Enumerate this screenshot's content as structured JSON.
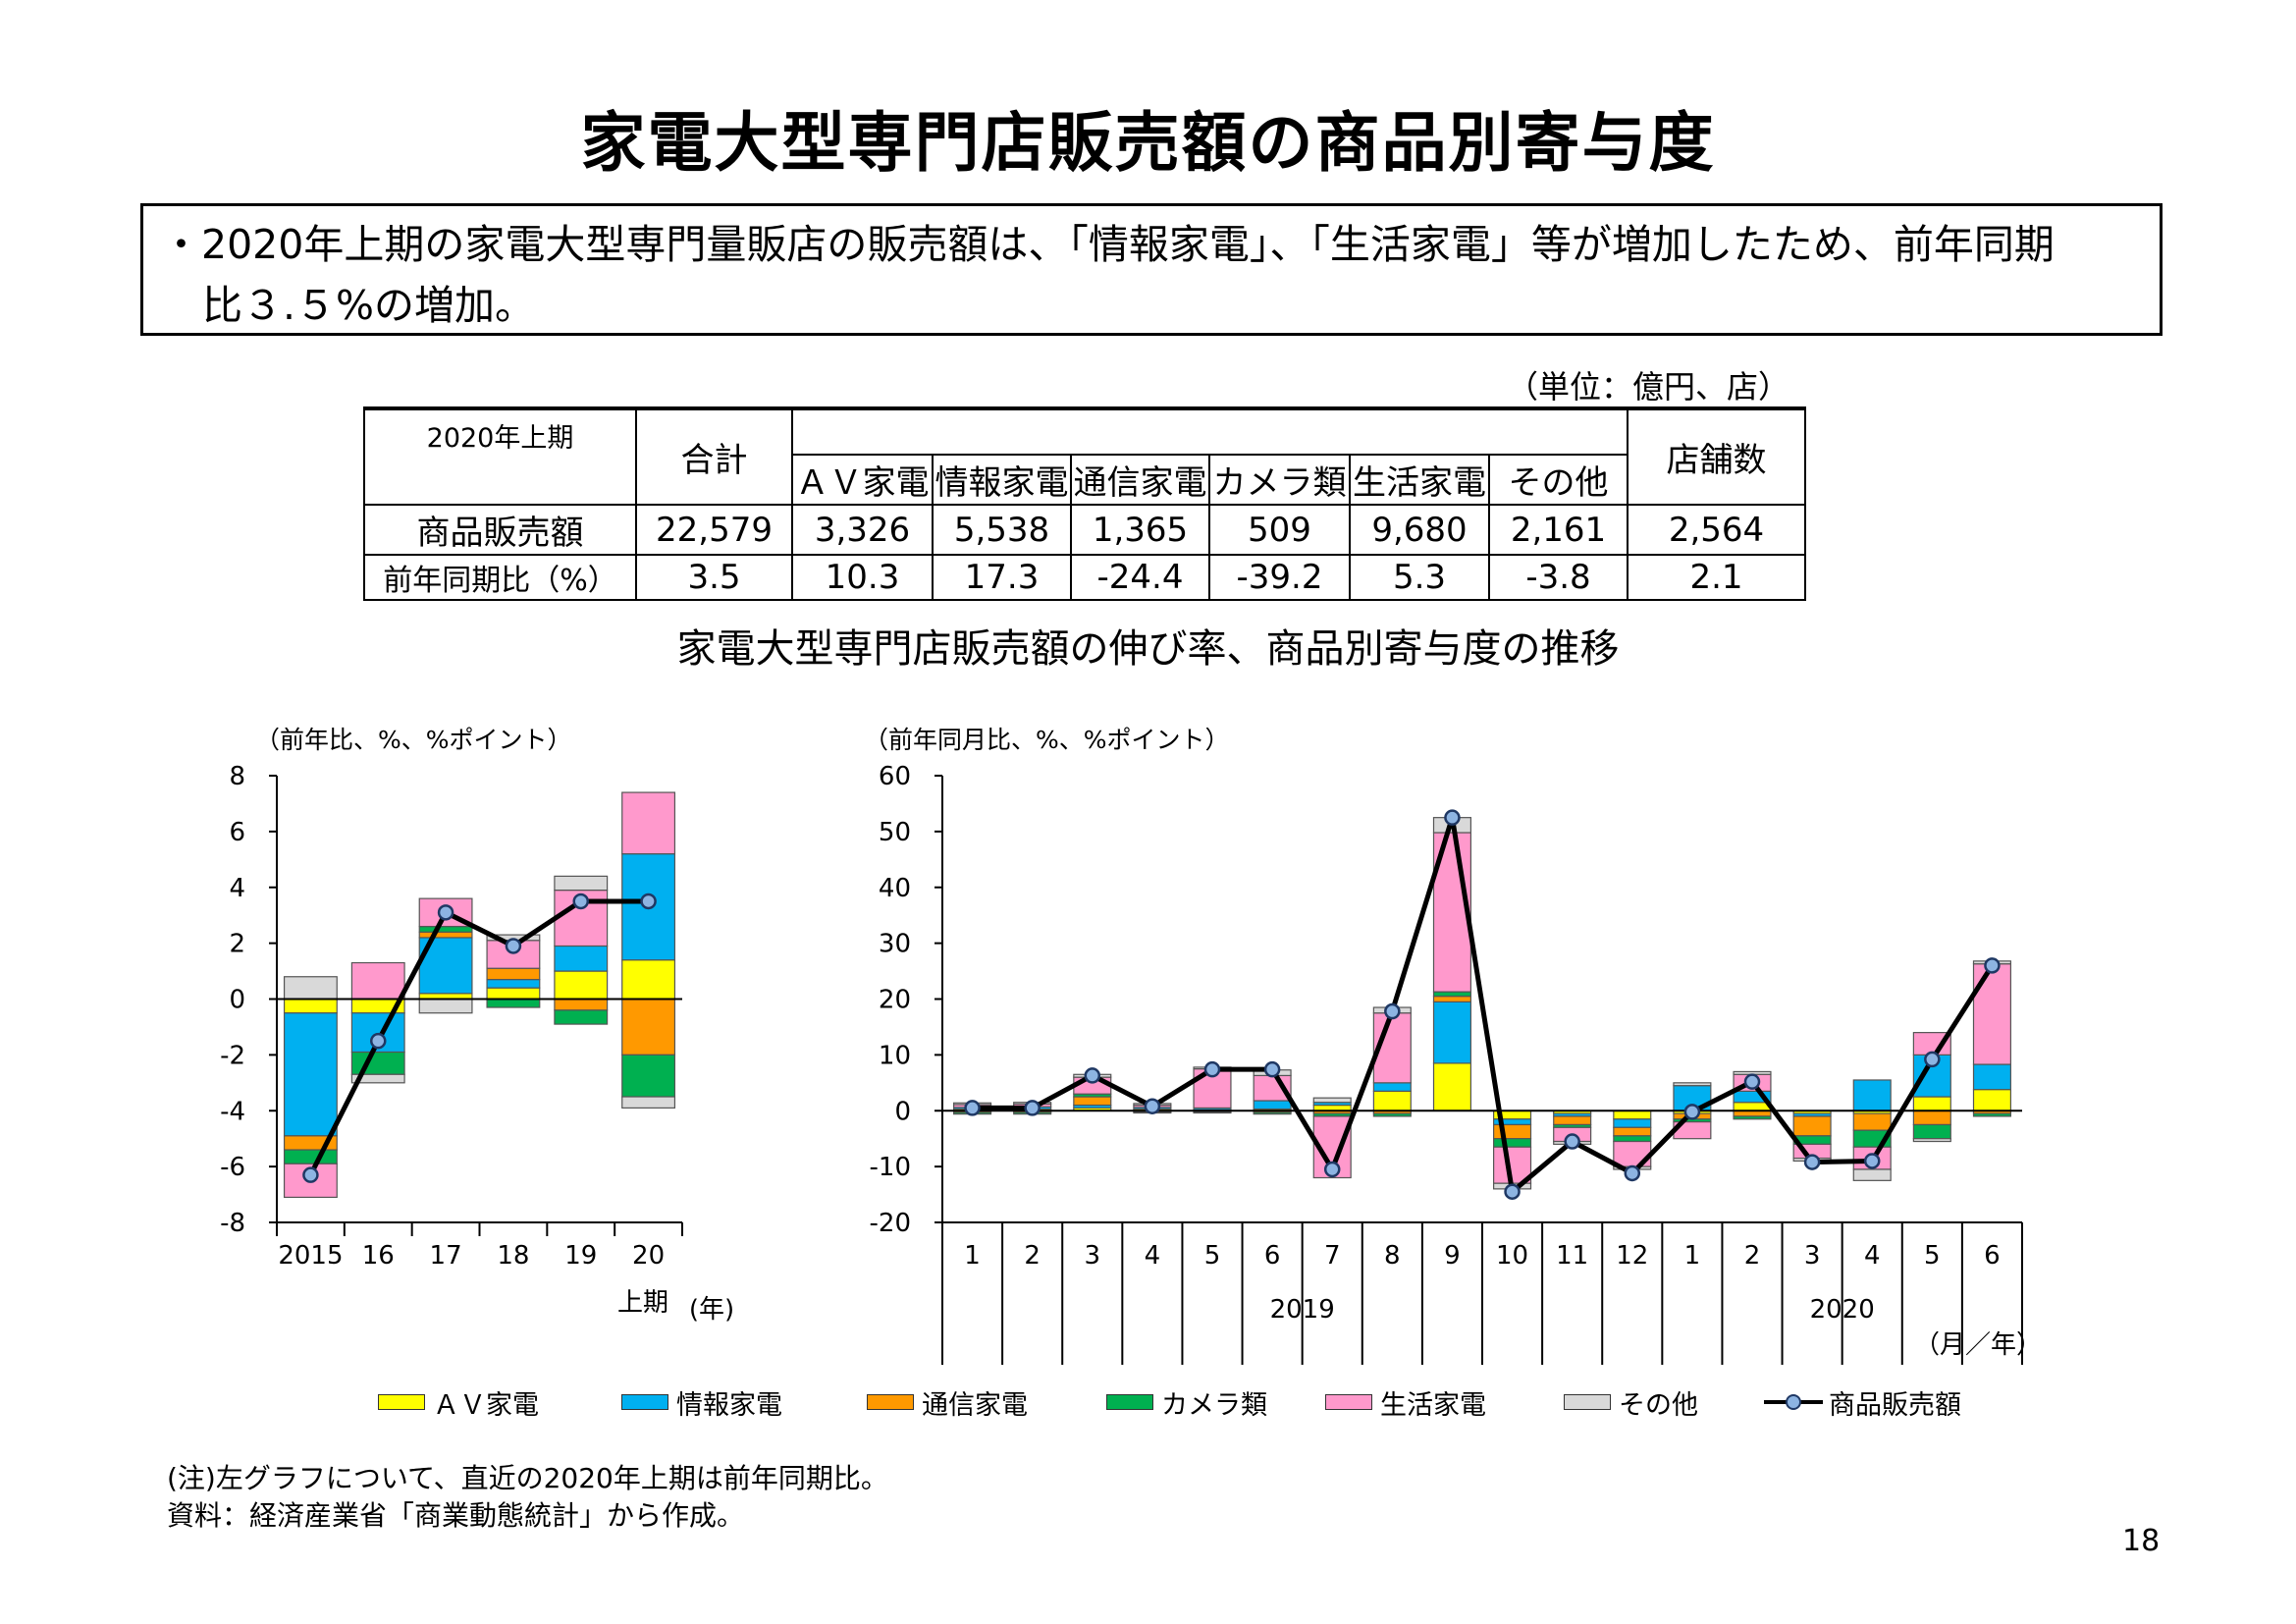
{
  "title": "家電大型専門店販売額の商品別寄与度",
  "summary": {
    "line1": "・2020年上期の家電大型専門量販店の販売額は、「情報家電」、「生活家電」等が増加したため、前年同期",
    "line2": "比３.５%の増加。"
  },
  "unit_label": "（単位：億円、店）",
  "table": {
    "period_label": "2020年上期",
    "total_header": "合計",
    "category_headers": [
      "ＡＶ家電",
      "情報家電",
      "通信家電",
      "カメラ類",
      "生活家電",
      "その他"
    ],
    "stores_header": "店舗数",
    "rows": [
      {
        "label": "商品販売額",
        "total": "22,579",
        "values": [
          "3,326",
          "5,538",
          "1,365",
          "509",
          "9,680",
          "2,161"
        ],
        "stores": "2,564"
      },
      {
        "label": "前年同期比（%）",
        "total": "3.5",
        "values": [
          "10.3",
          "17.3",
          "-24.4",
          "-39.2",
          "5.3",
          "-3.8"
        ],
        "stores": "2.1"
      }
    ]
  },
  "chart_subtitle": "家電大型専門店販売額の伸び率、商品別寄与度の推移",
  "colors": {
    "av": "#ffff00",
    "info": "#00b0f0",
    "telecom": "#ff9900",
    "camera": "#00b050",
    "living": "#ff99cc",
    "other": "#d9d9d9",
    "line": "#000000",
    "marker": "#8db4e2"
  },
  "legend": [
    "ＡＶ家電",
    "情報家電",
    "通信家電",
    "カメラ類",
    "生活家電",
    "その他",
    "商品販売額"
  ],
  "chart_data": [
    {
      "type": "bar",
      "stacked": true,
      "ylabel": "（前年比、%、%ポイント）",
      "ylim": [
        -8,
        8
      ],
      "yticks": [
        "8",
        "6",
        "4",
        "2",
        "0",
        "-2",
        "-4",
        "-6",
        "-8"
      ],
      "categories": [
        "2015",
        "16",
        "17",
        "18",
        "19",
        "20"
      ],
      "x_sublabel": "上期",
      "x_unit": "(年)",
      "series": [
        {
          "name": "ＡＶ家電",
          "values": [
            -0.5,
            -0.5,
            0.2,
            0.4,
            1.0,
            1.4
          ]
        },
        {
          "name": "情報家電",
          "values": [
            -4.4,
            -1.4,
            2.0,
            0.3,
            0.9,
            3.8
          ]
        },
        {
          "name": "通信家電",
          "values": [
            -0.5,
            0.0,
            0.2,
            0.4,
            -0.4,
            -2.0
          ]
        },
        {
          "name": "カメラ類",
          "values": [
            -0.5,
            -0.8,
            0.2,
            -0.3,
            -0.5,
            -1.5
          ]
        },
        {
          "name": "生活家電",
          "values": [
            -1.2,
            1.3,
            1.0,
            1.0,
            2.0,
            2.2
          ]
        },
        {
          "name": "その他",
          "values": [
            0.8,
            -0.3,
            -0.5,
            0.2,
            0.5,
            -0.4
          ]
        },
        {
          "name": "商品販売額",
          "type": "line",
          "values": [
            -6.3,
            -1.5,
            3.1,
            1.9,
            3.5,
            3.5
          ]
        }
      ]
    },
    {
      "type": "bar",
      "stacked": true,
      "ylabel": "（前年同月比、%、%ポイント）",
      "ylim": [
        -20,
        60
      ],
      "yticks": [
        "60",
        "50",
        "40",
        "30",
        "20",
        "10",
        "0",
        "-10",
        "-20"
      ],
      "categories": [
        "1",
        "2",
        "3",
        "4",
        "5",
        "6",
        "7",
        "8",
        "9",
        "10",
        "11",
        "12",
        "1",
        "2",
        "3",
        "4",
        "5",
        "6"
      ],
      "year_groups": [
        {
          "label": "2019",
          "count": 12
        },
        {
          "label": "2020",
          "count": 6
        }
      ],
      "x_unit": "（月／年）",
      "series": [
        {
          "name": "ＡＶ家電",
          "values": [
            0.3,
            0.3,
            0.5,
            0.3,
            0.2,
            0.3,
            1.0,
            3.5,
            8.5,
            -1.5,
            -0.5,
            -1.5,
            -0.5,
            1.5,
            -0.5,
            -0.5,
            2.5,
            3.8
          ]
        },
        {
          "name": "情報家電",
          "values": [
            0.3,
            0.4,
            0.5,
            0.3,
            0.3,
            1.5,
            0.5,
            1.5,
            11.0,
            -1.0,
            -0.5,
            -1.5,
            4.5,
            2.0,
            -0.5,
            5.5,
            7.5,
            4.5
          ]
        },
        {
          "name": "通信家電",
          "values": [
            -0.3,
            -0.3,
            1.5,
            -0.2,
            -0.2,
            -0.3,
            -0.5,
            -0.5,
            1.0,
            -2.5,
            -1.5,
            -1.5,
            -1.0,
            -1.0,
            -3.5,
            -3.0,
            -2.5,
            -0.5
          ]
        },
        {
          "name": "カメラ類",
          "values": [
            -0.3,
            -0.3,
            0.5,
            -0.2,
            -0.2,
            -0.3,
            -0.5,
            -0.5,
            0.8,
            -1.5,
            -0.5,
            -1.0,
            -0.5,
            -0.5,
            -1.5,
            -3.0,
            -2.5,
            -0.5
          ]
        },
        {
          "name": "生活家電",
          "values": [
            0.5,
            0.5,
            3.0,
            0.4,
            7.0,
            4.5,
            -11.0,
            12.5,
            28.5,
            -6.5,
            -2.5,
            -4.5,
            -3.0,
            3.0,
            -2.5,
            -4.0,
            4.0,
            18.0
          ]
        },
        {
          "name": "その他",
          "values": [
            0.3,
            0.3,
            0.5,
            0.3,
            0.3,
            1.0,
            0.8,
            1.0,
            2.7,
            -1.0,
            -0.5,
            -0.5,
            0.5,
            0.5,
            -0.5,
            -2.0,
            -0.5,
            0.5
          ]
        },
        {
          "name": "商品販売額",
          "type": "line",
          "values": [
            0.5,
            0.5,
            6.3,
            0.8,
            7.4,
            7.4,
            -10.5,
            17.8,
            52.5,
            -14.5,
            -5.5,
            -11.2,
            -0.2,
            5.2,
            -9.2,
            -9.0,
            9.2,
            26.0
          ]
        }
      ]
    }
  ],
  "notes": {
    "line1": "(注)左グラフについて、直近の2020年上期は前年同期比。",
    "line2": "資料：経済産業省「商業動態統計」から作成。"
  },
  "page_number": "18"
}
